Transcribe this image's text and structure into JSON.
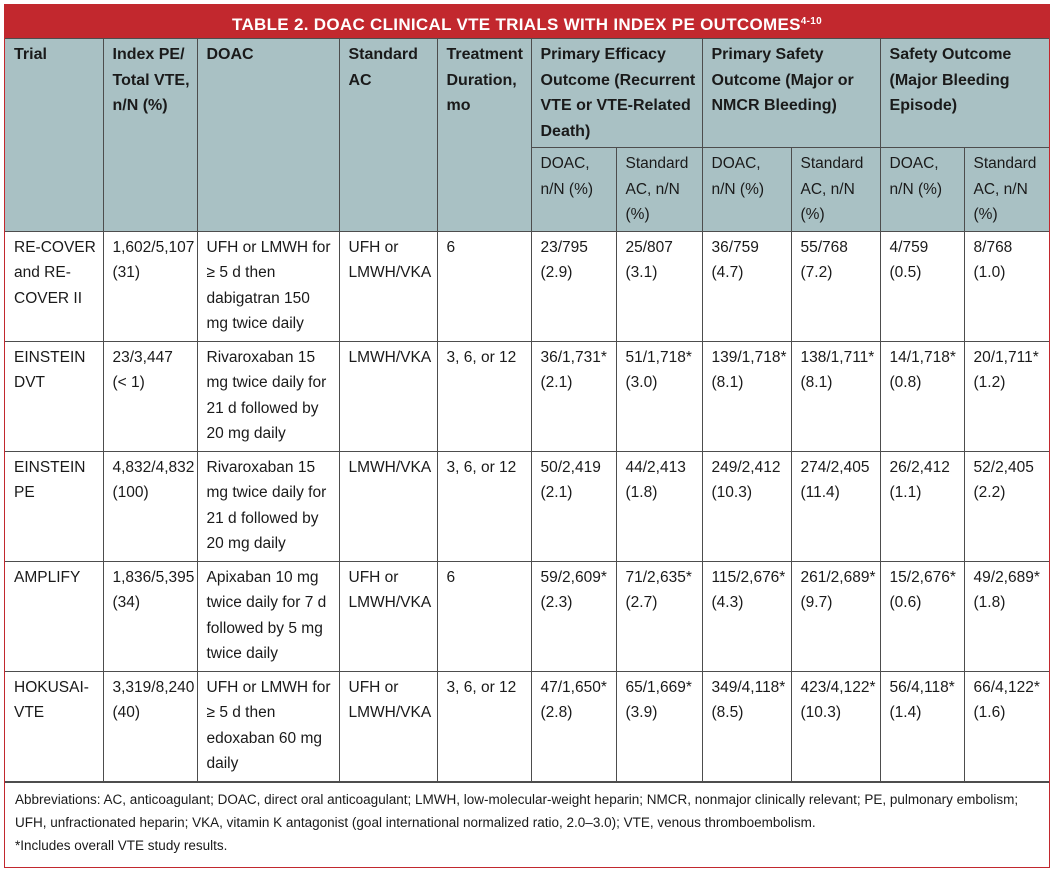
{
  "title": {
    "text": "TABLE 2.  DOAC CLINICAL VTE TRIALS WITH INDEX PE OUTCOMES",
    "superscript": "4-10"
  },
  "columns": [
    "Trial",
    "Index PE/ Total VTE, n/N (%)",
    "DOAC",
    "Standard AC",
    "Treatment Duration, mo",
    "Primary Efficacy Outcome (Recurrent VTE or VTE-Related Death)",
    "Primary Safety Outcome (Major or NMCR Bleeding)",
    "Safety Outcome (Major Bleeding Episode)"
  ],
  "subcolumns": [
    "DOAC, n/N (%)",
    "Standard AC, n/N (%)",
    "DOAC, n/N (%)",
    "Standard AC, n/N (%)",
    "DOAC, n/N (%)",
    "Standard AC, n/N (%)"
  ],
  "rows": [
    [
      "RE-COVER and RE-COVER II",
      "1,602/5,107 (31)",
      "UFH or LMWH for ≥ 5 d then dabigatran 150 mg twice daily",
      "UFH or LMWH/VKA",
      "6",
      "23/795 (2.9)",
      "25/807 (3.1)",
      "36/759 (4.7)",
      "55/768 (7.2)",
      "4/759 (0.5)",
      "8/768 (1.0)"
    ],
    [
      "EINSTEIN DVT",
      "23/3,447 (< 1)",
      "Rivaroxaban 15 mg twice daily for 21 d followed by 20 mg daily",
      "LMWH/VKA",
      "3, 6, or 12",
      "36/1,731* (2.1)",
      "51/1,718* (3.0)",
      "139/1,718* (8.1)",
      "138/1,711* (8.1)",
      "14/1,718* (0.8)",
      "20/1,711* (1.2)"
    ],
    [
      "EINSTEIN PE",
      "4,832/4,832 (100)",
      "Rivaroxaban 15 mg twice daily for 21 d followed by 20 mg daily",
      "LMWH/VKA",
      "3, 6, or 12",
      "50/2,419 (2.1)",
      "44/2,413 (1.8)",
      "249/2,412 (10.3)",
      "274/2,405 (11.4)",
      "26/2,412 (1.1)",
      "52/2,405 (2.2)"
    ],
    [
      "AMPLIFY",
      "1,836/5,395 (34)",
      "Apixaban 10 mg twice daily for 7 d followed by 5 mg twice daily",
      "UFH or LMWH/VKA",
      "6",
      "59/2,609* (2.3)",
      "71/2,635* (2.7)",
      "115/2,676* (4.3)",
      "261/2,689* (9.7)",
      "15/2,676* (0.6)",
      "49/2,689* (1.8)"
    ],
    [
      "HOKUSAI-VTE",
      "3,319/8,240 (40)",
      "UFH or LMWH for ≥ 5 d then edoxaban 60 mg daily",
      "UFH or LMWH/VKA",
      "3, 6, or 12",
      "47/1,650* (2.8)",
      "65/1,669* (3.9)",
      "349/4,118* (8.5)",
      "423/4,122* (10.3)",
      "56/4,118* (1.4)",
      "66/4,122* (1.6)"
    ]
  ],
  "footnotes": {
    "abbreviations": "Abbreviations: AC, anticoagulant; DOAC, direct oral anticoagulant; LMWH, low-molecular-weight heparin; NMCR, nonmajor clinically relevant; PE, pulmonary embolism; UFH, unfractionated heparin; VKA, vitamin K antagonist (goal international normalized ratio, 2.0–3.0); VTE, venous thromboembolism.",
    "asterisk": "*Includes overall VTE study results."
  },
  "colors": {
    "title_bar": "#c2282e",
    "header_bg": "#a9c1c4",
    "border": "#4d4d4d"
  }
}
